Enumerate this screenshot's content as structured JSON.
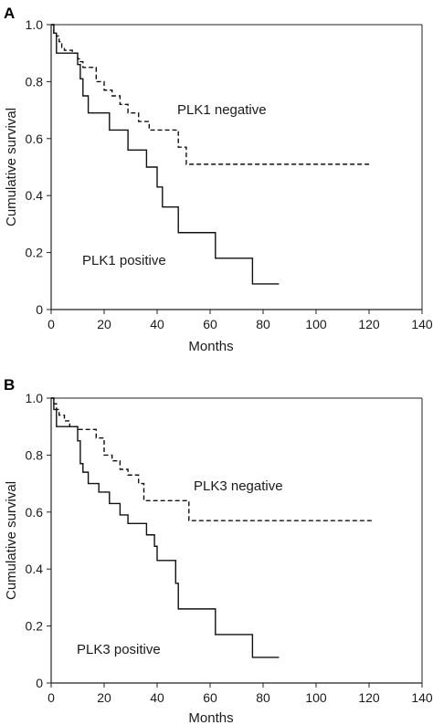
{
  "chart_data": [
    {
      "type": "line",
      "panel_label": "A",
      "xlabel": "Months",
      "ylabel": "Cumulative survival",
      "xlim": [
        0,
        140
      ],
      "ylim": [
        0,
        1.0
      ],
      "xticks": [
        0,
        20,
        40,
        60,
        80,
        100,
        120,
        140
      ],
      "xtick_labels": [
        "0",
        "20",
        "40",
        "60",
        "80",
        "100",
        "120",
        "140"
      ],
      "yticks": [
        0,
        0.2,
        0.4,
        0.6,
        0.8,
        1.0
      ],
      "ytick_labels": [
        "0",
        "0.2",
        "0.4",
        "0.6",
        "0.8",
        "1.0"
      ],
      "grid": false,
      "series": [
        {
          "name": "PLK1 negative",
          "style": "dashed",
          "x": [
            0,
            1,
            2,
            3,
            4,
            5,
            7,
            8,
            10,
            11,
            12,
            14,
            17,
            20,
            23,
            26,
            29,
            33,
            37,
            43,
            48,
            51,
            121
          ],
          "y": [
            1.0,
            0.97,
            0.96,
            0.94,
            0.92,
            0.91,
            0.91,
            0.9,
            0.88,
            0.87,
            0.85,
            0.85,
            0.8,
            0.77,
            0.75,
            0.72,
            0.69,
            0.66,
            0.63,
            0.63,
            0.57,
            0.51,
            0.51
          ]
        },
        {
          "name": "PLK1 positive",
          "style": "solid",
          "x": [
            0,
            1,
            2,
            8,
            10,
            11,
            12,
            14,
            22,
            29,
            36,
            40,
            42,
            48,
            55,
            62,
            69,
            76,
            86
          ],
          "y": [
            1.0,
            0.97,
            0.9,
            0.9,
            0.86,
            0.81,
            0.75,
            0.69,
            0.63,
            0.56,
            0.5,
            0.43,
            0.36,
            0.27,
            0.27,
            0.18,
            0.18,
            0.09,
            0.09
          ]
        }
      ],
      "annotations": [
        {
          "text": "PLK1 negative",
          "x": 45,
          "y": 0.7
        },
        {
          "text": "PLK1 positive",
          "x": 12,
          "y": 0.16
        }
      ]
    },
    {
      "type": "line",
      "panel_label": "B",
      "xlabel": "Months",
      "ylabel": "Cumulative survival",
      "xlim": [
        0,
        140
      ],
      "ylim": [
        0,
        1.0
      ],
      "xticks": [
        0,
        20,
        40,
        60,
        80,
        100,
        120,
        140
      ],
      "xtick_labels": [
        "0",
        "20",
        "40",
        "60",
        "80",
        "100",
        "120",
        "140"
      ],
      "yticks": [
        0,
        0.2,
        0.4,
        0.6,
        0.8,
        1.0
      ],
      "ytick_labels": [
        "0",
        "0.2",
        "0.4",
        "0.6",
        "0.8",
        "1.0"
      ],
      "grid": false,
      "series": [
        {
          "name": "PLK3 negative",
          "style": "dashed",
          "x": [
            0,
            1,
            2,
            3,
            5,
            7,
            8,
            10,
            12,
            14,
            17,
            20,
            23,
            26,
            29,
            33,
            35,
            40,
            45,
            48,
            52,
            121
          ],
          "y": [
            1.0,
            0.98,
            0.96,
            0.94,
            0.92,
            0.9,
            0.9,
            0.89,
            0.89,
            0.89,
            0.86,
            0.8,
            0.78,
            0.75,
            0.73,
            0.7,
            0.64,
            0.64,
            0.64,
            0.64,
            0.57,
            0.57
          ]
        },
        {
          "name": "PLK3 positive",
          "style": "solid",
          "x": [
            0,
            1,
            2,
            9,
            10,
            11,
            12,
            14,
            18,
            22,
            26,
            29,
            36,
            39,
            40,
            42,
            47,
            48,
            55,
            62,
            69,
            76,
            86
          ],
          "y": [
            1.0,
            0.96,
            0.9,
            0.9,
            0.85,
            0.77,
            0.74,
            0.7,
            0.67,
            0.63,
            0.59,
            0.56,
            0.52,
            0.48,
            0.43,
            0.43,
            0.35,
            0.26,
            0.26,
            0.17,
            0.17,
            0.09,
            0.09
          ]
        }
      ],
      "annotations": [
        {
          "text": "PLK3 negative",
          "x": 50,
          "y": 0.68
        },
        {
          "text": "PLK3 positive",
          "x": 8,
          "y": 0.1
        }
      ]
    }
  ]
}
